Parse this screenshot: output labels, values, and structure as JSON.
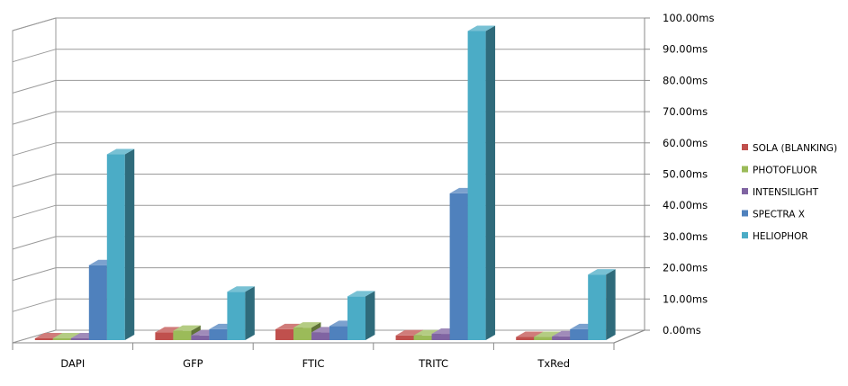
{
  "chart_data": {
    "type": "bar",
    "view": "3d-clustered-column",
    "categories": [
      "DAPI",
      "GFP",
      "FTIC",
      "TRITC",
      "TxRed"
    ],
    "series": [
      {
        "name": "SOLA (BLANKING)",
        "color": "#c0504d",
        "values": [
          0.5,
          2.5,
          3.5,
          1.5,
          1.0
        ]
      },
      {
        "name": "PHOTOFLUOR",
        "color": "#9bbb59",
        "values": [
          0.3,
          3.0,
          4.0,
          1.5,
          1.0
        ]
      },
      {
        "name": "INTENSILIGHT",
        "color": "#8064a2",
        "values": [
          0.3,
          1.5,
          2.5,
          2.0,
          1.2
        ]
      },
      {
        "name": "SPECTRA X",
        "color": "#4f81bd",
        "values": [
          24.0,
          3.5,
          4.5,
          47.0,
          3.5
        ]
      },
      {
        "name": "HELIOPHOR",
        "color": "#4bacc6",
        "values": [
          59.5,
          15.5,
          14.0,
          99.0,
          21.0
        ]
      }
    ],
    "y_ticks": [
      "0.00ms",
      "10.00ms",
      "20.00ms",
      "30.00ms",
      "40.00ms",
      "50.00ms",
      "60.00ms",
      "70.00ms",
      "80.00ms",
      "90.00ms",
      "100.00ms"
    ],
    "ylim": [
      0,
      100
    ],
    "y_unit": "ms",
    "title": "",
    "xlabel": "",
    "ylabel": "",
    "grid": true,
    "legend_position": "right"
  }
}
